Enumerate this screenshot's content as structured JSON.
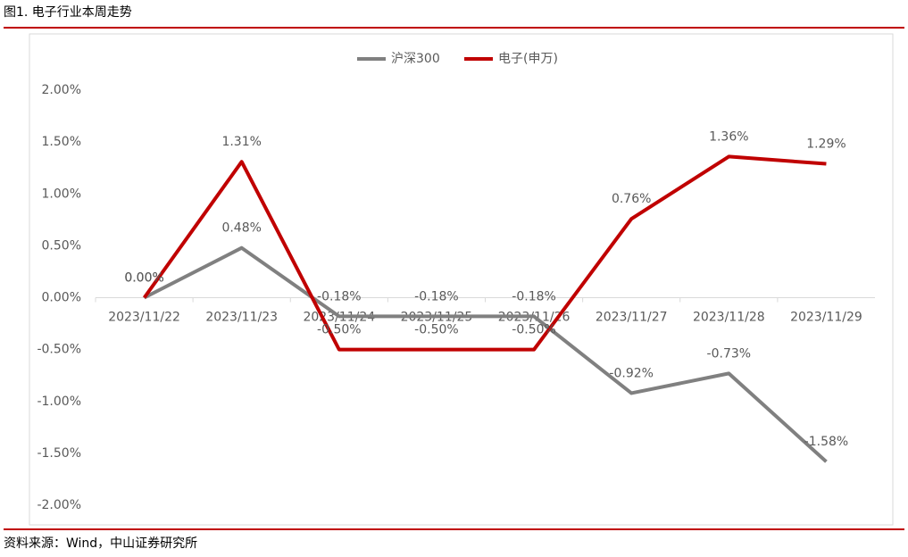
{
  "header": {
    "title": "图1. 电子行业本周走势"
  },
  "chart_data": {
    "type": "line",
    "categories": [
      "2023/11/22",
      "2023/11/23",
      "2023/11/24",
      "2023/11/25",
      "2023/11/26",
      "2023/11/27",
      "2023/11/28",
      "2023/11/29"
    ],
    "series": [
      {
        "name": "沪深300",
        "color": "#808080",
        "values": [
          0.0,
          0.48,
          -0.18,
          -0.18,
          -0.18,
          -0.92,
          -0.73,
          -1.58
        ],
        "value_labels": [
          "0.00%",
          "0.48%",
          "-0.18%",
          "-0.18%",
          "-0.18%",
          "-0.92%",
          "-0.73%",
          "-1.58%"
        ]
      },
      {
        "name": "电子(申万)",
        "color": "#c00000",
        "values": [
          0.0,
          1.31,
          -0.5,
          -0.5,
          -0.5,
          0.76,
          1.36,
          1.29
        ],
        "value_labels": [
          "0.00%",
          "1.31%",
          "-0.50%",
          "-0.50%",
          "-0.50%",
          "0.76%",
          "1.36%",
          "1.29%"
        ]
      }
    ],
    "ylim": [
      -2,
      2
    ],
    "yticks": [
      {
        "value": 2,
        "label": "2.00%"
      },
      {
        "value": 1.5,
        "label": "1.50%"
      },
      {
        "value": 1,
        "label": "1.00%"
      },
      {
        "value": 0.5,
        "label": "0.50%"
      },
      {
        "value": 0,
        "label": "0.00%"
      },
      {
        "value": -0.5,
        "label": "-0.50%"
      },
      {
        "value": -1,
        "label": "-1.00%"
      },
      {
        "value": -1.5,
        "label": "-1.50%"
      },
      {
        "value": -2,
        "label": "-2.00%"
      }
    ],
    "grid": false,
    "legend": "top"
  },
  "footer": {
    "source": "资料来源：Wind，中山证券研究所"
  }
}
